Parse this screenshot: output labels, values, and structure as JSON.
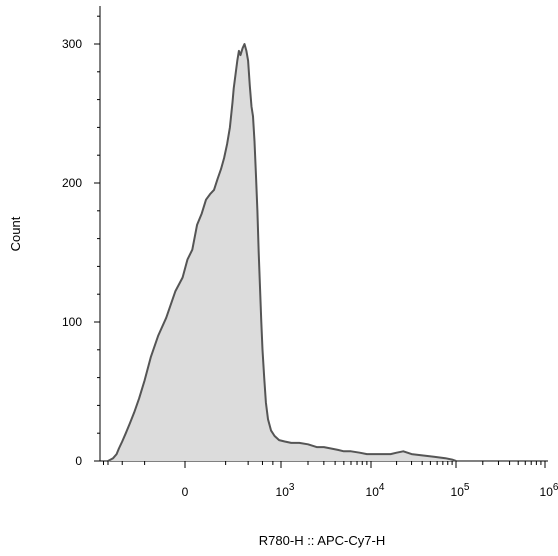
{
  "chart_data": {
    "type": "area",
    "xlabel": "R780-H :: APC-Cy7-H",
    "ylabel": "Count",
    "x_scale": "biexponential",
    "ylim": [
      0,
      330
    ],
    "y_ticks": [
      {
        "value": 0,
        "label": "0"
      },
      {
        "value": 100,
        "label": "100"
      },
      {
        "value": 200,
        "label": "200"
      },
      {
        "value": 300,
        "label": "300"
      }
    ],
    "x_ticks": [
      {
        "value": 0,
        "base": "0",
        "exp": ""
      },
      {
        "value": 1000,
        "base": "10",
        "exp": "3"
      },
      {
        "value": 10000,
        "base": "10",
        "exp": "4"
      },
      {
        "value": 100000,
        "base": "10",
        "exp": "5"
      },
      {
        "value": 1000000,
        "base": "10",
        "exp": "6"
      }
    ],
    "fill_color": "#dcdcdc",
    "line_color": "#555555",
    "series": [
      {
        "x": [
          -600,
          -520,
          -470,
          -440,
          -400,
          -360,
          -320,
          -280,
          -240,
          -200,
          -160,
          -120,
          -80,
          -40,
          -10,
          10,
          30,
          50,
          70,
          90,
          110,
          130,
          150,
          170,
          190,
          210,
          230,
          250,
          260,
          275,
          290,
          305,
          320,
          340,
          360,
          380,
          400,
          420,
          440,
          460,
          480,
          500,
          520,
          540,
          560,
          580,
          600,
          630,
          660,
          700,
          760,
          840,
          950,
          1100,
          1300,
          1600,
          2000,
          2500,
          3000,
          3600,
          4300,
          5000,
          6000,
          7500,
          9000,
          11000,
          14000,
          17000,
          20000,
          24000,
          30000,
          40000,
          55000,
          75000,
          90000,
          100000
        ],
        "y": [
          0,
          2,
          5,
          9,
          14,
          20,
          27,
          35,
          45,
          58,
          75,
          90,
          103,
          122,
          132,
          145,
          152,
          170,
          178,
          188,
          192,
          195,
          203,
          210,
          218,
          228,
          240,
          258,
          268,
          278,
          288,
          295,
          292,
          297,
          300,
          295,
          288,
          270,
          255,
          248,
          230,
          205,
          180,
          150,
          125,
          100,
          80,
          60,
          42,
          30,
          22,
          18,
          15,
          14,
          13,
          13,
          12,
          10,
          10,
          9,
          8,
          7,
          7,
          6,
          5,
          5,
          5,
          5,
          6,
          7,
          5,
          4,
          3,
          2,
          1,
          0
        ]
      }
    ]
  }
}
